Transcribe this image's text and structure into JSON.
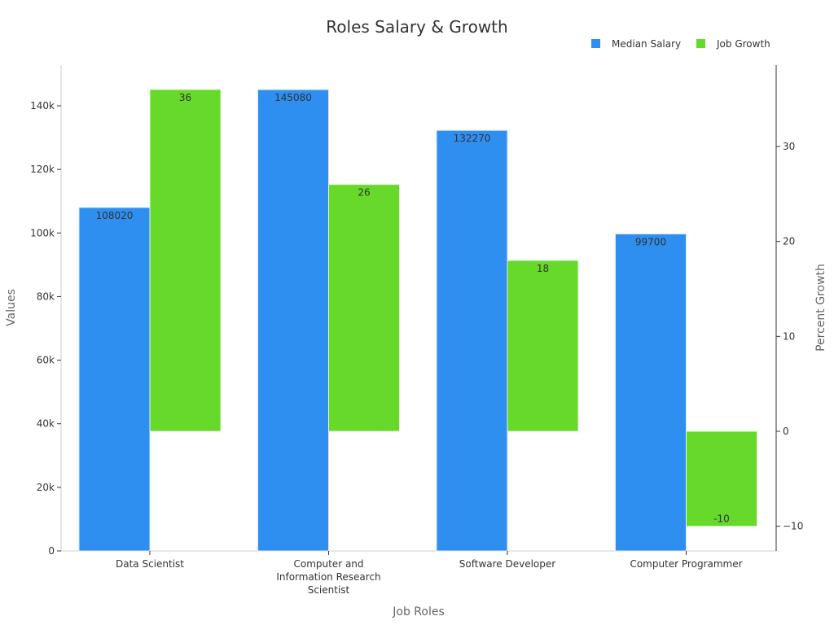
{
  "chart_data": {
    "type": "bar",
    "title": "Roles Salary & Growth",
    "xlabel": "Job Roles",
    "ylabel": "Values",
    "y2label": "Percent Growth",
    "categories": [
      [
        "Data Scientist"
      ],
      [
        "Computer and",
        "Information Research",
        "Scientist"
      ],
      [
        "Software Developer"
      ],
      [
        "Computer Programmer"
      ]
    ],
    "series": [
      {
        "name": "Median Salary",
        "axis": "left",
        "color": "#2e8ff0",
        "values": [
          108020,
          145080,
          132270,
          99700
        ]
      },
      {
        "name": "Job Growth",
        "axis": "right",
        "color": "#66d92a",
        "values": [
          36,
          26,
          18,
          -10
        ]
      }
    ],
    "ylim": [
      0,
      150000
    ],
    "y_ticks": [
      0,
      20000,
      40000,
      60000,
      80000,
      100000,
      120000,
      140000
    ],
    "y_tick_labels": [
      "0",
      "20k",
      "40k",
      "60k",
      "80k",
      "100k",
      "120k",
      "140k"
    ],
    "y2lim": [
      -12.5,
      38.3
    ],
    "y2_ticks": [
      -10,
      0,
      10,
      20,
      30
    ],
    "y2_tick_labels": [
      "−10",
      "0",
      "10",
      "20",
      "30"
    ],
    "legend_position": "top-right",
    "grid": false
  }
}
